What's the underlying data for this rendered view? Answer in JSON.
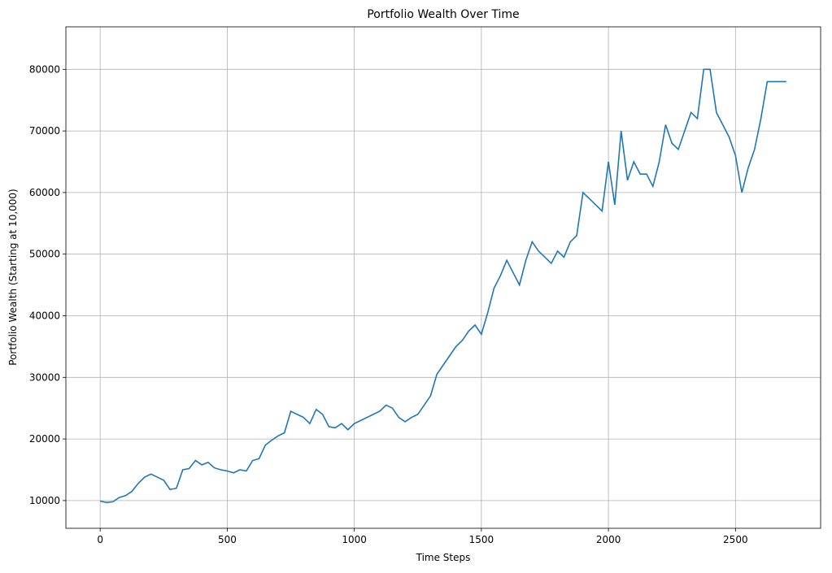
{
  "chart_data": {
    "type": "line",
    "title": "Portfolio Wealth Over Time",
    "x_label": "Time Steps",
    "y_label": "Portfolio Wealth (Starting at 10,000)",
    "x": [
      0,
      25,
      50,
      75,
      100,
      125,
      150,
      175,
      200,
      225,
      250,
      275,
      300,
      325,
      350,
      375,
      400,
      425,
      450,
      475,
      500,
      525,
      550,
      575,
      600,
      625,
      650,
      675,
      700,
      725,
      750,
      775,
      800,
      825,
      850,
      875,
      900,
      925,
      950,
      975,
      1000,
      1025,
      1050,
      1075,
      1100,
      1125,
      1150,
      1175,
      1200,
      1225,
      1250,
      1275,
      1300,
      1325,
      1350,
      1375,
      1400,
      1425,
      1450,
      1475,
      1500,
      1525,
      1550,
      1575,
      1600,
      1625,
      1650,
      1675,
      1700,
      1725,
      1750,
      1775,
      1800,
      1825,
      1850,
      1875,
      1900,
      1925,
      1950,
      1975,
      2000,
      2025,
      2050,
      2075,
      2100,
      2125,
      2150,
      2175,
      2200,
      2225,
      2250,
      2275,
      2300,
      2325,
      2350,
      2375,
      2400,
      2425,
      2450,
      2475,
      2500,
      2525,
      2550,
      2575,
      2600,
      2625,
      2650,
      2675,
      2700
    ],
    "series": [
      {
        "color": "#1f77b4",
        "values": [
          9900,
          9700,
          9800,
          10500,
          10800,
          11500,
          12800,
          13800,
          14300,
          13800,
          13300,
          11800,
          12000,
          15000,
          15200,
          16500,
          15800,
          16200,
          15300,
          15000,
          14800,
          14500,
          15000,
          14800,
          16500,
          16800,
          19000,
          19800,
          20500,
          21000,
          24500,
          24000,
          23500,
          22500,
          24800,
          24000,
          22000,
          21800,
          22500,
          21500,
          22500,
          23000,
          23500,
          24000,
          24500,
          25500,
          25000,
          23500,
          22800,
          23500,
          24000,
          25500,
          27000,
          30500,
          32000,
          33500,
          35000,
          36000,
          37500,
          38500,
          37000,
          40500,
          44500,
          46500,
          49000,
          47000,
          45000,
          49000,
          52000,
          50500,
          49500,
          48500,
          50500,
          49500,
          52000,
          53000,
          60000,
          59000,
          58000,
          57000,
          65000,
          58000,
          70000,
          62000,
          65000,
          63000,
          63000,
          61000,
          65000,
          71000,
          68000,
          67000,
          70000,
          73000,
          72000,
          80000,
          80000,
          73000,
          71000,
          69000,
          66000,
          60000,
          64000,
          67000,
          72000,
          78000,
          78000,
          78000,
          78000
        ]
      }
    ],
    "xlim": [
      -135,
      2835
    ],
    "ylim": [
      5500,
      86900
    ],
    "xticks": [
      0,
      500,
      1000,
      1500,
      2000,
      2500
    ],
    "yticks": [
      10000,
      20000,
      30000,
      40000,
      50000,
      60000,
      70000,
      80000
    ],
    "grid": true
  }
}
